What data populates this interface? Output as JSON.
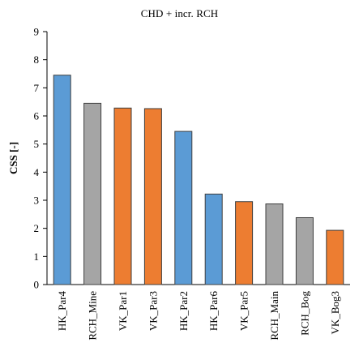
{
  "chart_data": {
    "type": "bar",
    "title": "CHD + incr. RCH",
    "xlabel": "",
    "ylabel": "CSS [-]",
    "ylim": [
      0,
      9
    ],
    "yticks": [
      "0",
      "1",
      "2",
      "3",
      "4",
      "5",
      "6",
      "7",
      "8",
      "9"
    ],
    "grid": false,
    "legend": "none",
    "categories": [
      "HK_Par4",
      "RCH_Mine",
      "VK_Par1",
      "VK_Par3",
      "HK_Par2",
      "HK_Par6",
      "VK_Par5",
      "RCH_Main",
      "RCH_Bog",
      "VK_Bog3"
    ],
    "values": [
      7.45,
      6.45,
      6.28,
      6.26,
      5.45,
      3.22,
      2.95,
      2.87,
      2.38,
      1.93
    ],
    "bar_colors": [
      "#5b9bd5",
      "#a5a5a5",
      "#ed7d31",
      "#ed7d31",
      "#5b9bd5",
      "#5b9bd5",
      "#ed7d31",
      "#a5a5a5",
      "#a5a5a5",
      "#ed7d31"
    ],
    "bar_edge_color": "#3f3f3f"
  }
}
